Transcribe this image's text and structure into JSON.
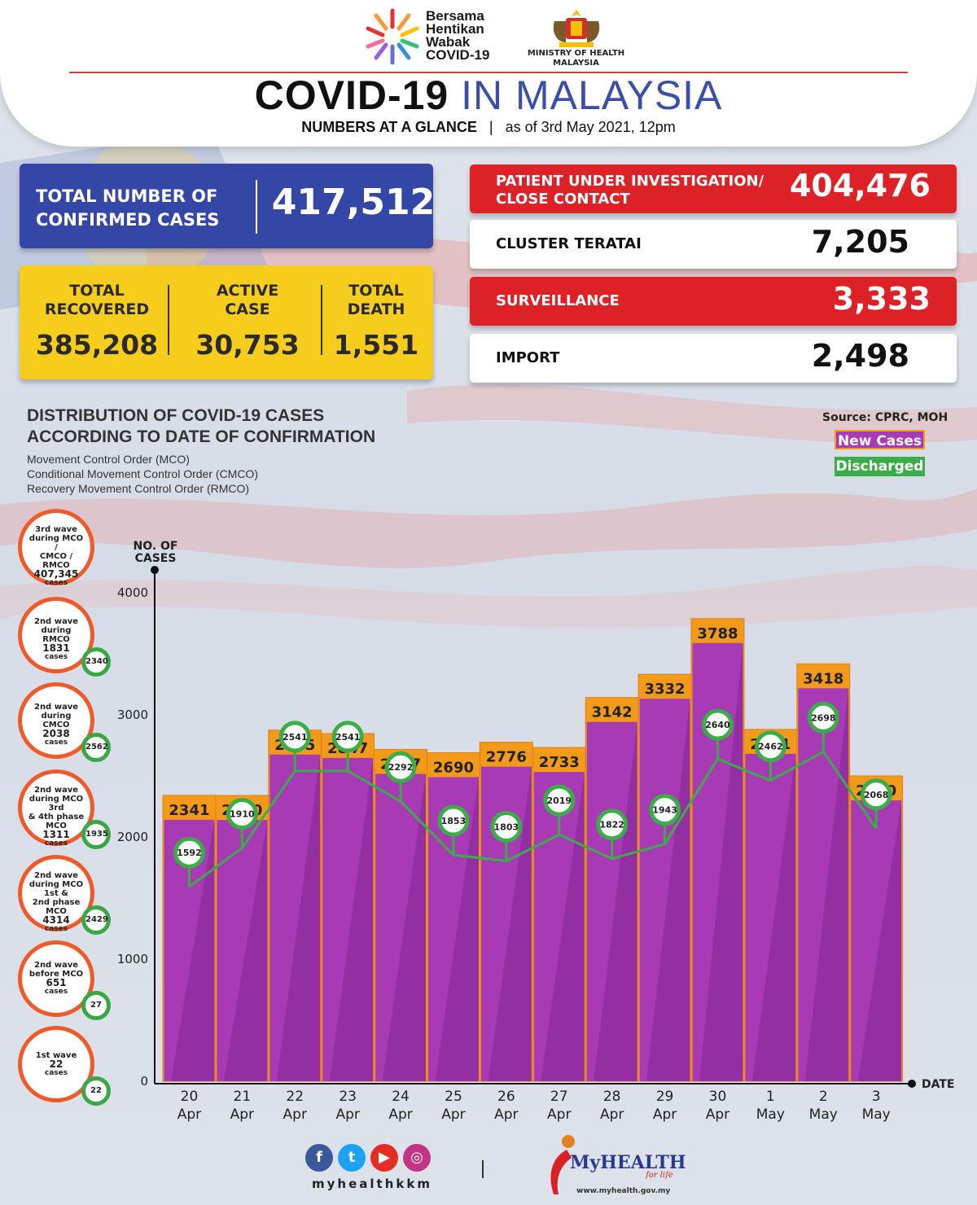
{
  "header": {
    "campaign_lines": [
      "Bersama",
      "Hentikan",
      "Wabak",
      "COVID-19"
    ],
    "ministry_lines": [
      "MINISTRY OF HEALTH",
      "MALAYSIA"
    ],
    "title_dark": "COVID-19",
    "title_blue": "IN MALAYSIA",
    "subtitle_bold": "NUMBERS AT A GLANCE",
    "subtitle_sep": "|",
    "subtitle_date": "as of 3rd May 2021, 12pm"
  },
  "stats": {
    "confirmed": {
      "label_line1": "TOTAL NUMBER OF",
      "label_line2": "CONFIRMED CASES",
      "value": "417,512"
    },
    "recovered": {
      "label_line1": "TOTAL",
      "label_line2": "RECOVERED",
      "value": "385,208"
    },
    "active": {
      "label_line1": "ACTIVE",
      "label_line2": "CASE",
      "value": "30,753"
    },
    "death": {
      "label_line1": "TOTAL",
      "label_line2": "DEATH",
      "value": "1,551"
    },
    "pui": {
      "label_line1": "PATIENT UNDER INVESTIGATION/",
      "label_line2": "CLOSE CONTACT",
      "value": "404,476"
    },
    "cluster": {
      "label": "CLUSTER TERATAI",
      "value": "7,205"
    },
    "surveillance": {
      "label": "SURVEILLANCE",
      "value": "3,333"
    },
    "import": {
      "label": "IMPORT",
      "value": "2,498"
    }
  },
  "chart_header": {
    "title_line1": "DISTRIBUTION OF COVID-19 CASES",
    "title_line2": "ACCORDING TO DATE OF CONFIRMATION",
    "notes": [
      "Movement Control Order (MCO)",
      "Conditional Movement Control Order (CMCO)",
      "Recovery Movement Control Order (RMCO)"
    ],
    "source": "Source: CPRC, MOH",
    "legend_new": "New Cases",
    "legend_discharged": "Discharged"
  },
  "waves": [
    {
      "lines": [
        "3rd wave",
        "during MCO /",
        "CMCO / RMCO"
      ],
      "count": "407,345",
      "unit": "cases",
      "discharged": ""
    },
    {
      "lines": [
        "2nd wave",
        "during RMCO"
      ],
      "count": "1831",
      "unit": "cases",
      "discharged": "2340"
    },
    {
      "lines": [
        "2nd wave",
        "during CMCO"
      ],
      "count": "2038",
      "unit": "cases",
      "discharged": "2562"
    },
    {
      "lines": [
        "2nd wave",
        "during MCO 3rd",
        "& 4th phase MCO"
      ],
      "count": "1311",
      "unit": "cases",
      "discharged": "1935"
    },
    {
      "lines": [
        "2nd wave",
        "during MCO 1st &",
        "2nd phase MCO"
      ],
      "count": "4314",
      "unit": "cases",
      "discharged": "2429"
    },
    {
      "lines": [
        "2nd wave",
        "before MCO"
      ],
      "count": "651",
      "unit": "cases",
      "discharged": "27"
    },
    {
      "lines": [
        "1st wave"
      ],
      "count": "22",
      "unit": "cases",
      "discharged": "22"
    }
  ],
  "chart_data": {
    "type": "bar",
    "ylabel": "NO. OF CASES",
    "xlabel": "DATE",
    "ylim": [
      0,
      4000
    ],
    "yticks": [
      0,
      1000,
      2000,
      3000,
      4000
    ],
    "categories": [
      [
        "20",
        "Apr"
      ],
      [
        "21",
        "Apr"
      ],
      [
        "22",
        "Apr"
      ],
      [
        "23",
        "Apr"
      ],
      [
        "24",
        "Apr"
      ],
      [
        "25",
        "Apr"
      ],
      [
        "26",
        "Apr"
      ],
      [
        "27",
        "Apr"
      ],
      [
        "28",
        "Apr"
      ],
      [
        "29",
        "Apr"
      ],
      [
        "30",
        "Apr"
      ],
      [
        "1",
        "May"
      ],
      [
        "2",
        "May"
      ],
      [
        "3",
        "May"
      ]
    ],
    "series": [
      {
        "name": "New Cases",
        "values": [
          2341,
          2340,
          2875,
          2847,
          2717,
          2690,
          2776,
          2733,
          3142,
          3332,
          3788,
          2881,
          3418,
          2500
        ],
        "color": "#a83bb5"
      },
      {
        "name": "Discharged",
        "values": [
          1592,
          1910,
          2541,
          2541,
          2292,
          1853,
          1803,
          2019,
          1822,
          1943,
          2640,
          2462,
          2698,
          2068
        ],
        "color": "#3bac48"
      }
    ],
    "colors": {
      "bar_top": "#f39a1b",
      "bar": "#a83bb5",
      "bar_dark": "#8e2c9d",
      "line": "#3bac48"
    }
  },
  "footer": {
    "social_icons": [
      "facebook-icon",
      "twitter-icon",
      "youtube-icon",
      "instagram-icon"
    ],
    "handle": "myhealthkkm",
    "sep": "|",
    "brand": "MyHEALTH",
    "brand_tag": "for life",
    "url": "www.myhealth.gov.my"
  }
}
